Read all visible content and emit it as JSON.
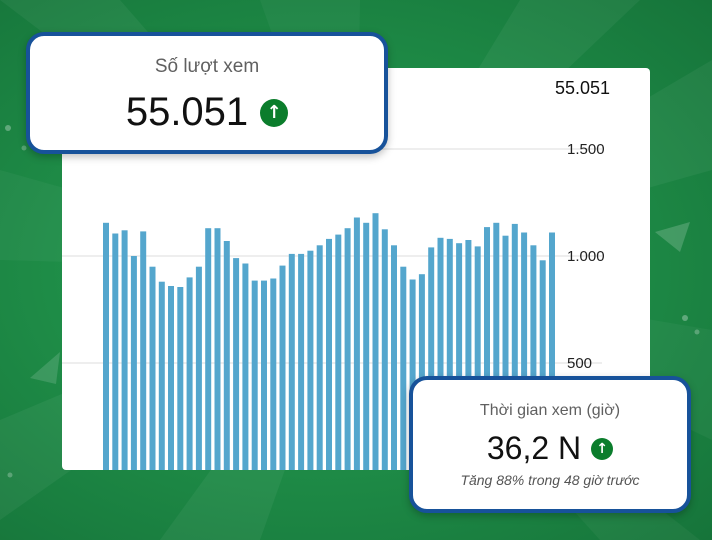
{
  "colors": {
    "bar": "#54a6cd",
    "card_border": "#17529a",
    "up_icon": "#0b7d2c",
    "background": "#1f8e48"
  },
  "views_card": {
    "label": "Số lượt xem",
    "value": "55.051",
    "trend_icon": "arrow-up-circle-icon"
  },
  "watch_card": {
    "label": "Thời gian xem (giờ)",
    "value": "36,2 N",
    "trend_icon": "arrow-up-circle-icon",
    "subtitle": "Tăng 88% trong 48 giờ trước"
  },
  "chart_data": {
    "type": "bar",
    "title": "",
    "top_value_label": "55.051",
    "ylim": [
      0,
      1600
    ],
    "yticks": [
      500,
      1000,
      1500
    ],
    "ytick_labels": [
      "500",
      "1.000",
      "1.500"
    ],
    "grid": true,
    "values": [
      1155,
      1105,
      1120,
      1000,
      1115,
      950,
      880,
      860,
      855,
      900,
      950,
      1130,
      1130,
      1070,
      990,
      965,
      885,
      885,
      895,
      955,
      1010,
      1010,
      1025,
      1050,
      1080,
      1100,
      1130,
      1180,
      1155,
      1200,
      1125,
      1050,
      950,
      890,
      915,
      1040,
      1085,
      1080,
      1060,
      1075,
      1045,
      1135,
      1155,
      1095,
      1150,
      1110,
      1050,
      980,
      1110
    ]
  }
}
